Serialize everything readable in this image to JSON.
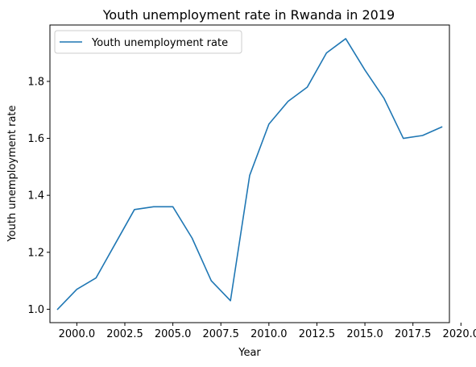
{
  "chart_data": {
    "type": "line",
    "title": "Youth unemployment rate in Rwanda in 2019",
    "xlabel": "Year",
    "ylabel": "Youth unemployment rate",
    "xlim": [
      1998.6,
      2019.4
    ],
    "ylim": [
      0.953,
      1.998
    ],
    "x_ticks": [
      2000.0,
      2002.5,
      2005.0,
      2007.5,
      2010.0,
      2012.5,
      2015.0,
      2017.5,
      2020.0
    ],
    "x_tick_labels": [
      "2000.0",
      "2002.5",
      "2005.0",
      "2007.5",
      "2010.0",
      "2012.5",
      "2015.0",
      "2017.5",
      "2020.0"
    ],
    "y_ticks": [
      1.0,
      1.2,
      1.4,
      1.6,
      1.8
    ],
    "y_tick_labels": [
      "1.0",
      "1.2",
      "1.4",
      "1.6",
      "1.8"
    ],
    "grid": false,
    "legend_position": "top-left",
    "series": [
      {
        "name": "Youth unemployment rate",
        "color": "#1f77b4",
        "x": [
          1999,
          2000,
          2001,
          2002,
          2003,
          2004,
          2005,
          2006,
          2007,
          2008,
          2009,
          2010,
          2011,
          2012,
          2013,
          2014,
          2015,
          2016,
          2017,
          2018,
          2019
        ],
        "y": [
          1.0,
          1.07,
          1.11,
          1.23,
          1.35,
          1.36,
          1.36,
          1.25,
          1.1,
          1.03,
          1.47,
          1.65,
          1.73,
          1.78,
          1.9,
          1.95,
          1.84,
          1.74,
          1.6,
          1.61,
          1.64
        ]
      }
    ]
  }
}
